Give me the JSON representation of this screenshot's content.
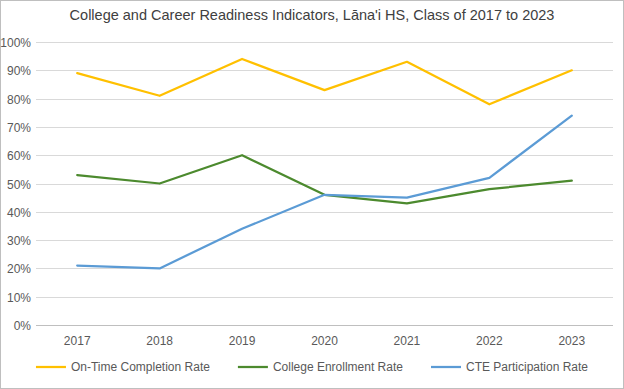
{
  "chart_data": {
    "type": "line",
    "title": "College and Career Readiness Indicators, Lāna'i HS, Class of 2017 to 2023",
    "categories": [
      "2017",
      "2018",
      "2019",
      "2020",
      "2021",
      "2022",
      "2023"
    ],
    "series": [
      {
        "name": "On-Time Completion Rate",
        "color": "#ffc000",
        "values": [
          89,
          81,
          94,
          83,
          93,
          78,
          90
        ]
      },
      {
        "name": "College Enrollment Rate",
        "color": "#4c8a2e",
        "values": [
          53,
          50,
          60,
          46,
          43,
          48,
          51
        ]
      },
      {
        "name": "CTE Participation Rate",
        "color": "#5b9bd5",
        "values": [
          21,
          20,
          34,
          46,
          45,
          52,
          74
        ]
      }
    ],
    "ylim": [
      0,
      100
    ],
    "yticks": [
      {
        "value": 0,
        "label": "0%"
      },
      {
        "value": 10,
        "label": "10%"
      },
      {
        "value": 20,
        "label": "20%"
      },
      {
        "value": 30,
        "label": "30%"
      },
      {
        "value": 40,
        "label": "40%"
      },
      {
        "value": 50,
        "label": "50%"
      },
      {
        "value": 60,
        "label": "60%"
      },
      {
        "value": 70,
        "label": "70%"
      },
      {
        "value": 80,
        "label": "80%"
      },
      {
        "value": 90,
        "label": "90%"
      },
      {
        "value": 100,
        "label": "100%"
      }
    ],
    "grid": true,
    "legend": "bottom"
  }
}
